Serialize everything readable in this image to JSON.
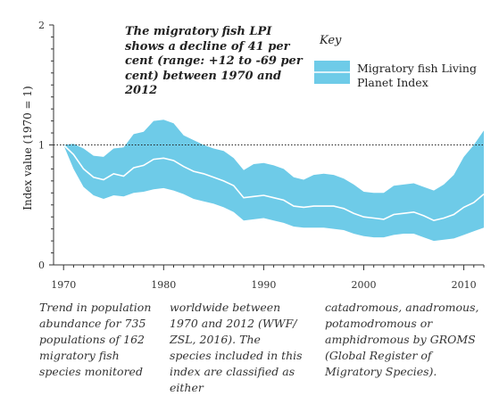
{
  "chart_data": {
    "type": "area",
    "title": "The migratory fish LPI shows a decline of 41 per cent (range: +12 to -69 per cent) between 1970 and 2012",
    "ylabel": "Index value (1970 = 1)",
    "xlabel": "",
    "xlim": [
      1969,
      2012
    ],
    "ylim": [
      0,
      2
    ],
    "x_ticks": [
      "1970",
      "1980",
      "1990",
      "2000",
      "2010"
    ],
    "y_ticks": [
      "0",
      "1",
      "2"
    ],
    "x_tick_values": [
      1970,
      1980,
      1990,
      2000,
      2010
    ],
    "y_tick_values": [
      0,
      1,
      2
    ],
    "reference_line": 1,
    "x": [
      1970,
      1971,
      1972,
      1973,
      1974,
      1975,
      1976,
      1977,
      1978,
      1979,
      1980,
      1981,
      1982,
      1983,
      1984,
      1985,
      1986,
      1987,
      1988,
      1989,
      1990,
      1991,
      1992,
      1993,
      1994,
      1995,
      1996,
      1997,
      1998,
      1999,
      2000,
      2001,
      2002,
      2003,
      2004,
      2005,
      2006,
      2007,
      2008,
      2009,
      2010,
      2011,
      2012
    ],
    "series": [
      {
        "name": "Migratory fish Living Planet Index",
        "values": [
          1.0,
          0.92,
          0.8,
          0.73,
          0.71,
          0.76,
          0.74,
          0.81,
          0.83,
          0.88,
          0.89,
          0.87,
          0.82,
          0.78,
          0.76,
          0.73,
          0.7,
          0.66,
          0.56,
          0.57,
          0.58,
          0.56,
          0.54,
          0.49,
          0.48,
          0.49,
          0.49,
          0.49,
          0.47,
          0.43,
          0.4,
          0.39,
          0.38,
          0.42,
          0.43,
          0.44,
          0.41,
          0.37,
          0.39,
          0.42,
          0.48,
          0.52,
          0.59
        ],
        "upper": [
          1.0,
          1.01,
          0.97,
          0.91,
          0.9,
          0.97,
          0.98,
          1.09,
          1.11,
          1.2,
          1.21,
          1.18,
          1.08,
          1.04,
          1.0,
          0.97,
          0.95,
          0.89,
          0.79,
          0.84,
          0.85,
          0.83,
          0.8,
          0.73,
          0.71,
          0.75,
          0.76,
          0.75,
          0.72,
          0.67,
          0.61,
          0.6,
          0.6,
          0.66,
          0.67,
          0.68,
          0.65,
          0.62,
          0.67,
          0.75,
          0.9,
          1.0,
          1.12
        ],
        "lower": [
          1.0,
          0.8,
          0.65,
          0.58,
          0.55,
          0.58,
          0.57,
          0.6,
          0.61,
          0.63,
          0.64,
          0.62,
          0.59,
          0.55,
          0.53,
          0.51,
          0.48,
          0.44,
          0.37,
          0.38,
          0.39,
          0.37,
          0.35,
          0.32,
          0.31,
          0.31,
          0.31,
          0.3,
          0.29,
          0.26,
          0.24,
          0.23,
          0.23,
          0.25,
          0.26,
          0.26,
          0.23,
          0.2,
          0.21,
          0.22,
          0.25,
          0.28,
          0.31
        ]
      }
    ],
    "colors": {
      "band": "#6ecbe8",
      "line": "#ffffff",
      "reference": "#222222",
      "axis": "#333333"
    },
    "legend_position": "top-right"
  },
  "key": {
    "title": "Key",
    "label": "Migratory fish Living Planet Index"
  },
  "headline": "The migratory fish LPI shows a decline of 41 per cent (range: +12 to -69 per cent) between 1970 and 2012",
  "captions": [
    "Trend in population abundance for 735 populations of 162 migratory fish species monitored",
    "worldwide between 1970 and 2012 (WWF/ ZSL, 2016). The species included in this index are classified as either",
    "catadromous, anadromous, potamodromous or amphidromous by GROMS (Global Register of Migratory Species)."
  ]
}
